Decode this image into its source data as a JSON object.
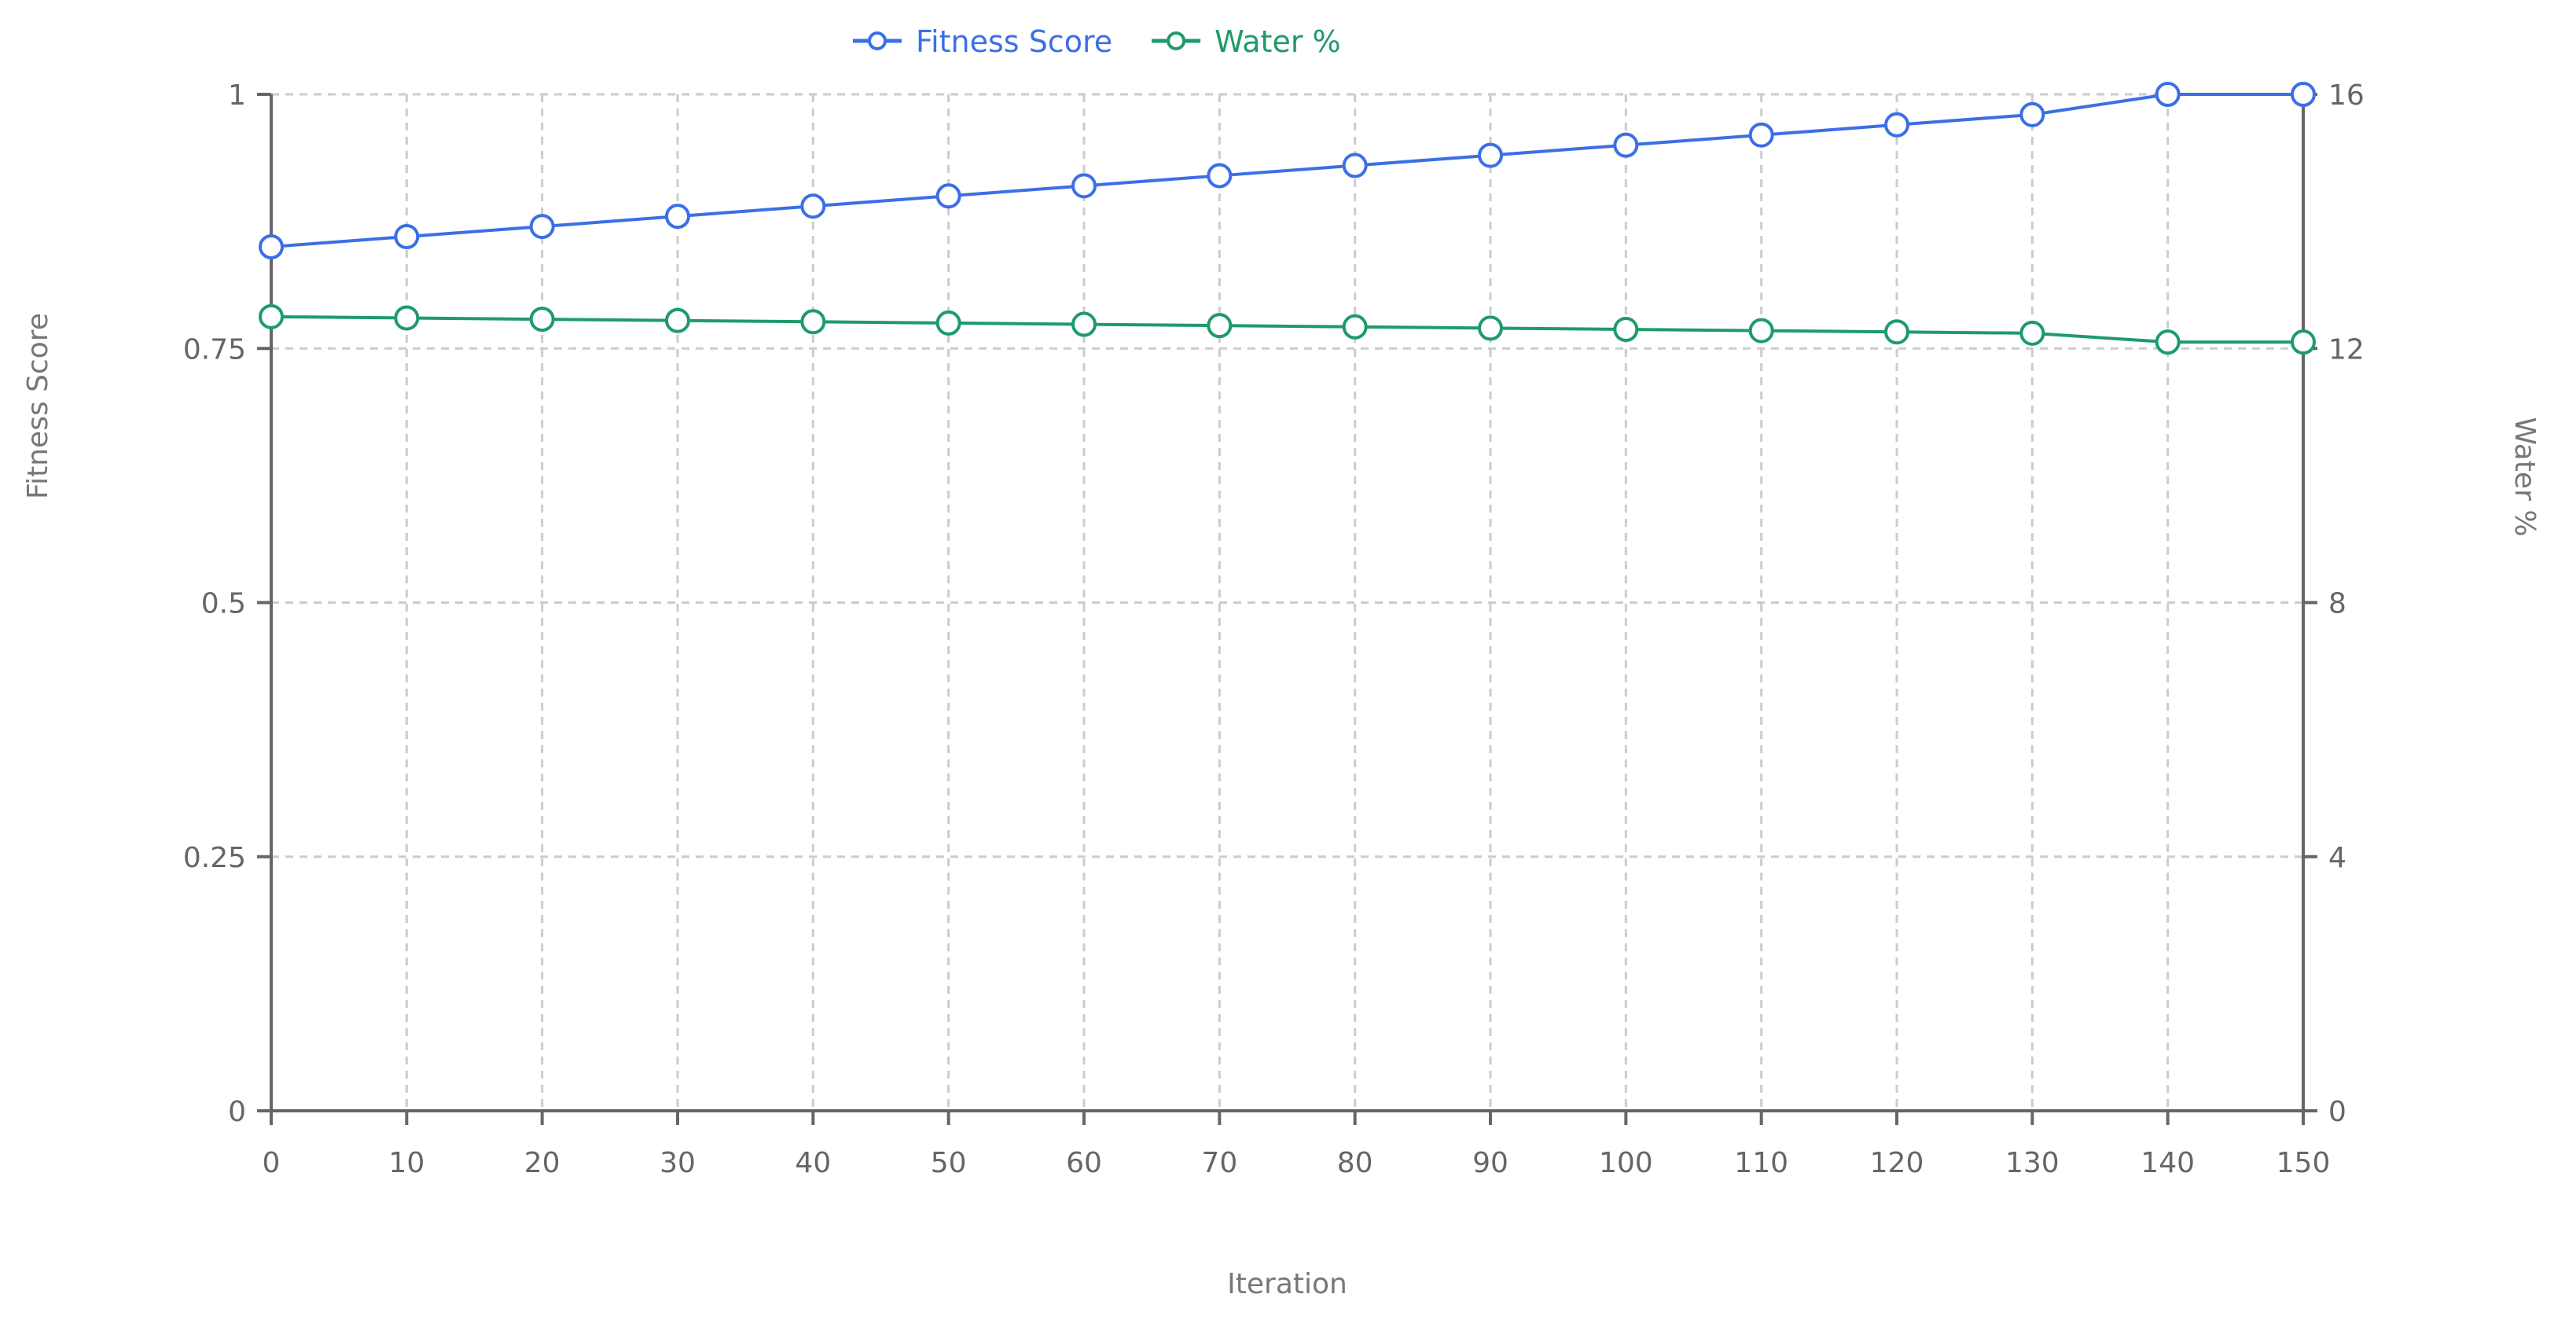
{
  "chart_data": {
    "type": "line",
    "x": [
      0,
      10,
      20,
      30,
      40,
      50,
      60,
      70,
      80,
      90,
      100,
      110,
      120,
      130,
      140,
      150
    ],
    "series": [
      {
        "name": "Fitness Score",
        "axis": "left",
        "color": "#3b6fe6",
        "values": [
          0.85,
          0.86,
          0.87,
          0.88,
          0.89,
          0.9,
          0.91,
          0.92,
          0.93,
          0.94,
          0.95,
          0.96,
          0.97,
          0.98,
          1.0,
          1.0
        ]
      },
      {
        "name": "Water %",
        "axis": "right",
        "color": "#1e9b6a",
        "values": [
          12.5,
          12.48,
          12.46,
          12.44,
          12.42,
          12.4,
          12.38,
          12.36,
          12.34,
          12.32,
          12.3,
          12.28,
          12.26,
          12.24,
          12.1,
          12.1
        ]
      }
    ],
    "xlabel": "Iteration",
    "ylabel_left": "Fitness Score",
    "ylabel_right": "Water %",
    "xlim": [
      0,
      150
    ],
    "ylim_left": [
      0,
      1
    ],
    "ylim_right": [
      0,
      16
    ],
    "xticks": [
      "0",
      "10",
      "20",
      "30",
      "40",
      "50",
      "60",
      "70",
      "80",
      "90",
      "100",
      "110",
      "120",
      "130",
      "140",
      "150"
    ],
    "yticks_left": [
      "0",
      "0.25",
      "0.5",
      "0.75",
      "1"
    ],
    "yticks_right": [
      "0",
      "4",
      "8",
      "12",
      "16"
    ],
    "grid": true,
    "legend_position": "top-center"
  }
}
